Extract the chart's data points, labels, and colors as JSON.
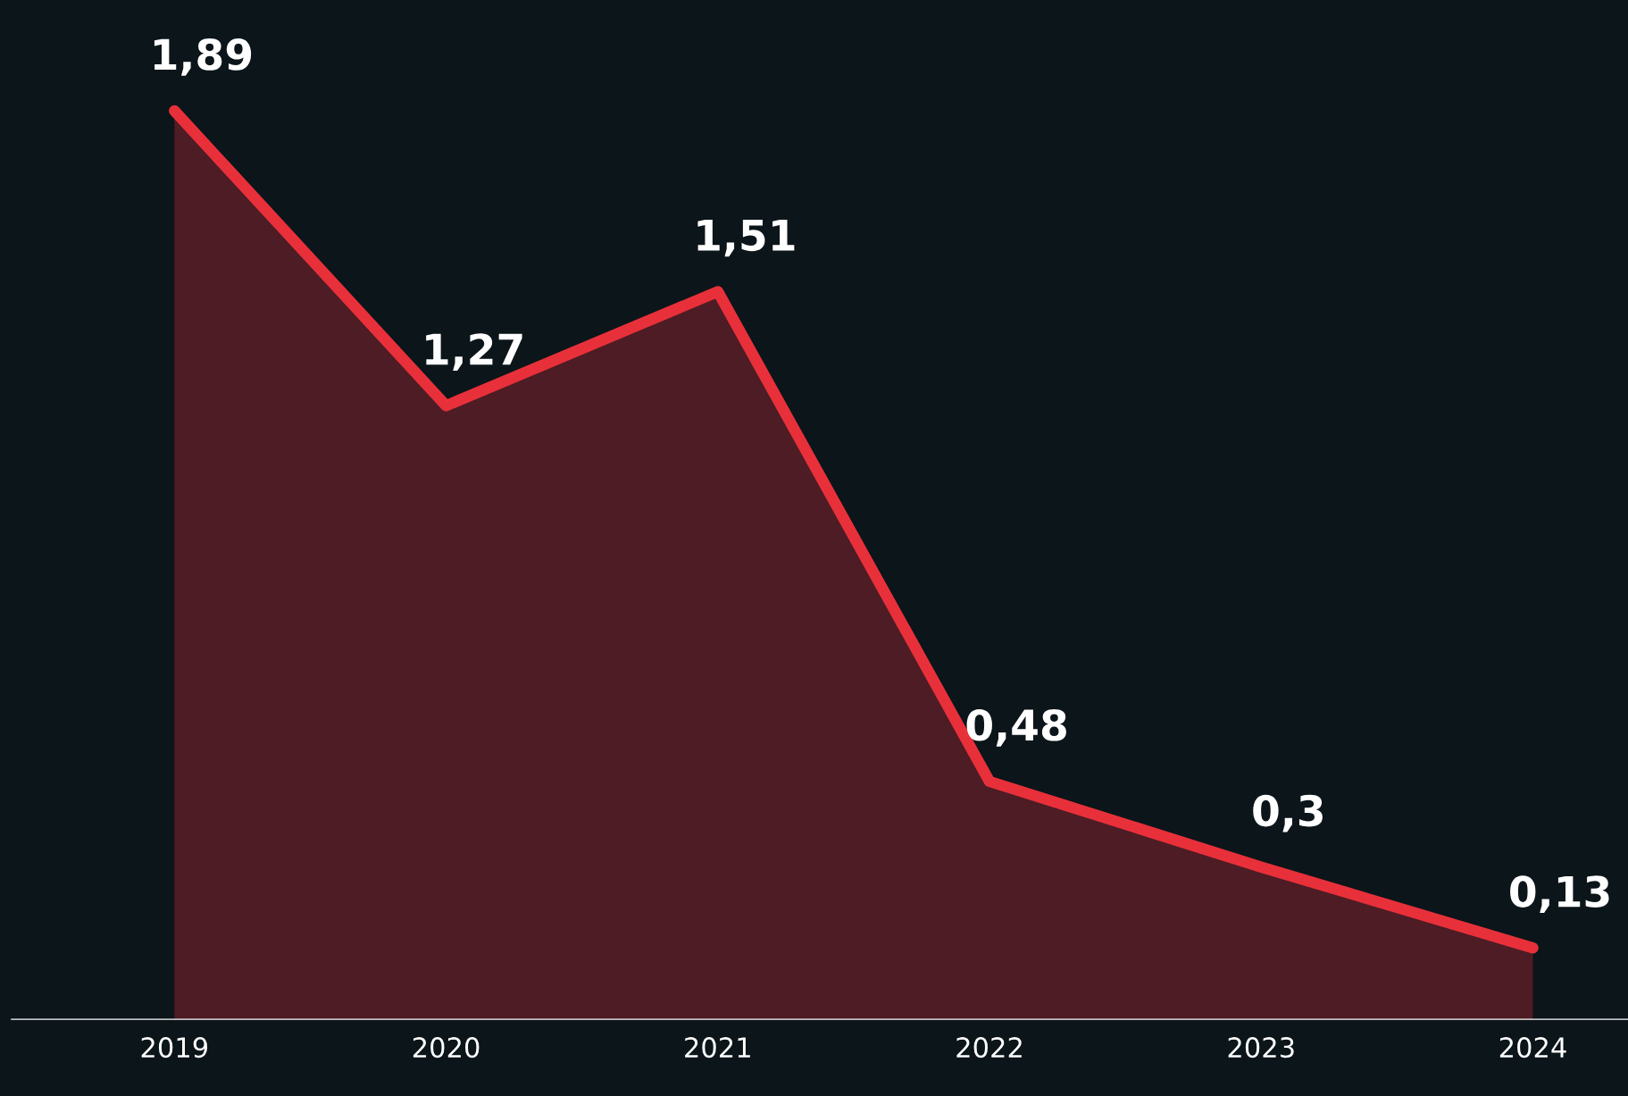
{
  "chart_data": {
    "type": "area",
    "categories": [
      "2019",
      "2020",
      "2021",
      "2022",
      "2023",
      "2024"
    ],
    "series": [
      {
        "color": "#e8303a",
        "values": [
          1.89,
          1.27,
          1.51,
          0.48,
          0.3,
          0.13
        ],
        "value_labels": [
          "1,89",
          "1,27",
          "1,51",
          "0,48",
          "0,3",
          "0,13"
        ]
      }
    ],
    "grid": false,
    "legend": false,
    "line_style": "solid"
  }
}
